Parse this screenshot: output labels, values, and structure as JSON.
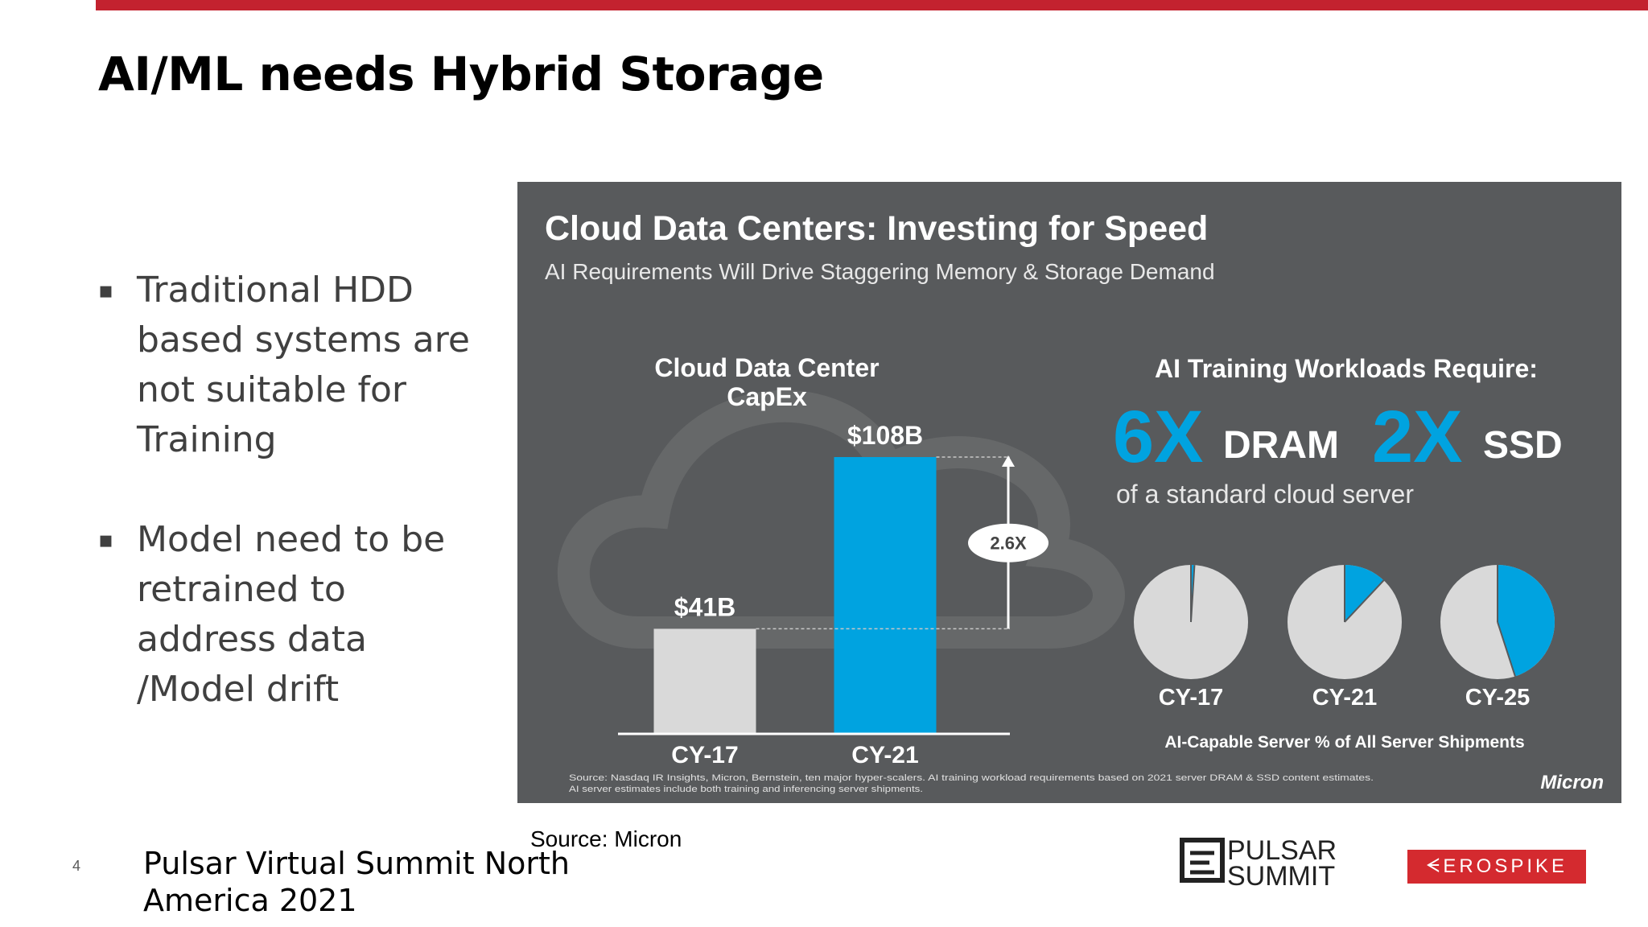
{
  "slide": {
    "title": "AI/ML needs Hybrid Storage",
    "page_number": "4",
    "bullets": [
      {
        "marker": "▪",
        "text": "Traditional HDD\nbased systems are\nnot suitable for\nTraining"
      },
      {
        "marker": "▪",
        "text": "Model need to be\nretrained to\naddress data\n/Model drift"
      }
    ],
    "source_caption": "Source: Micron",
    "footer_event": "Pulsar Virtual Summit North\nAmerica 2021"
  },
  "logos": {
    "pulsar_line1": "PULSAR",
    "pulsar_line2": "SUMMIT",
    "aerospike": "ᗕEROSPIKE"
  },
  "embedded_slide": {
    "title": "Cloud Data Centers: Investing for Speed",
    "subtitle": "AI Requirements Will Drive Staggering Memory & Storage Demand",
    "capex_title_line1": "Cloud Data Center",
    "capex_title_line2": "CapEx",
    "growth_label": "2.6X",
    "ai_title": "AI Training Workloads Require:",
    "dram_multiplier": "6X",
    "dram_label": "DRAM",
    "ssd_multiplier": "2X",
    "ssd_label": "SSD",
    "standard_label": "of a standard cloud server",
    "pie_caption": "AI-Capable Server % of All Server Shipments",
    "source_line1": "Source: Nasdaq IR Insights, Micron, Bernstein, ten major hyper-scalers. AI training workload requirements based on 2021 server DRAM & SSD content estimates.",
    "source_line2": "AI server estimates include both training and inferencing server shipments.",
    "micron_logo": "Micron",
    "colors": {
      "panel": "#585a5c",
      "highlight": "#00a3e0",
      "grey_bar": "#d9d9d9",
      "pie_rest": "#d9d9d9"
    }
  },
  "chart_data": [
    {
      "type": "bar",
      "title": "Cloud Data Center CapEx",
      "categories": [
        "CY-17",
        "CY-21"
      ],
      "values": [
        41,
        108
      ],
      "data_labels": [
        "$41B",
        "$108B"
      ],
      "unit": "$B",
      "bar_colors": [
        "#d9d9d9",
        "#00a3e0"
      ]
    },
    {
      "type": "pie",
      "title": "AI-Capable Server % of All Server Shipments",
      "categories": [
        "CY-17",
        "CY-21",
        "CY-25"
      ],
      "ai_share_percent": [
        1,
        12,
        45
      ]
    }
  ]
}
